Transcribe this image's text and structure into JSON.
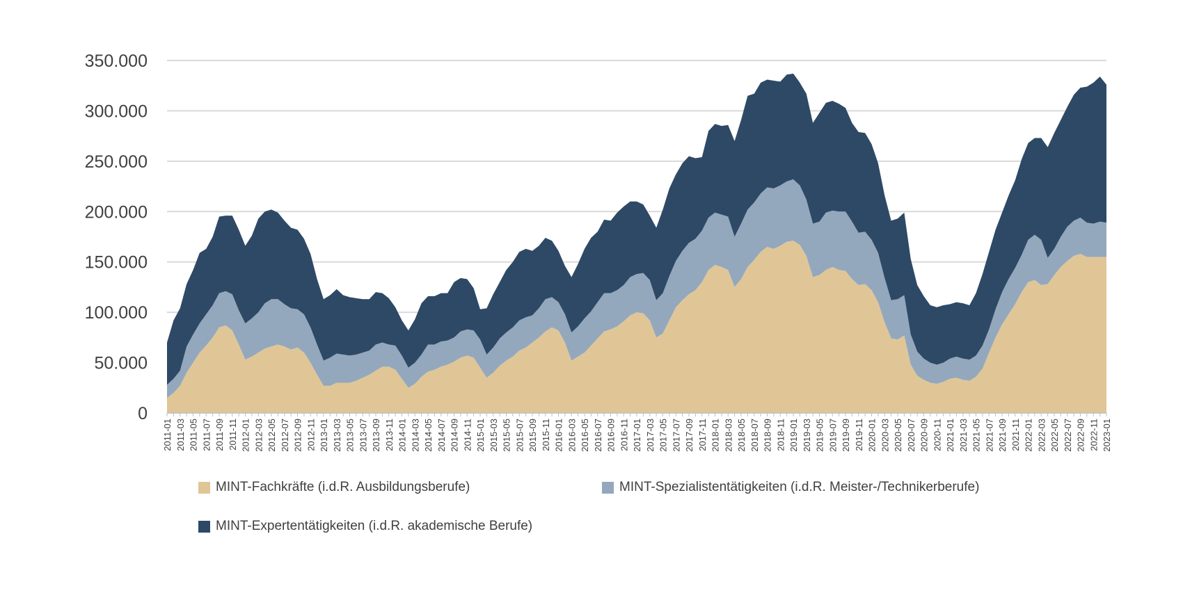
{
  "chart_data": {
    "type": "area",
    "stacked": true,
    "grid": true,
    "legend_position": "bottom",
    "ylim": [
      0,
      350000
    ],
    "y_ticks": [
      0,
      50000,
      100000,
      150000,
      200000,
      250000,
      300000,
      350000
    ],
    "y_tick_labels": [
      "0",
      "50.000",
      "100.000",
      "150.000",
      "200.000",
      "250.000",
      "300.000",
      "350.000"
    ],
    "x_start": "2011-01",
    "x_label_step": 2,
    "series": [
      {
        "name": "MINT-Fachkräfte (i.d.R. Ausbildungsberufe)",
        "color": "#e0c697",
        "values": [
          15000,
          20000,
          27000,
          40000,
          50000,
          60000,
          67000,
          75000,
          85000,
          87000,
          82000,
          68000,
          53000,
          56000,
          60000,
          64000,
          66000,
          68000,
          66000,
          63000,
          65000,
          60000,
          50000,
          38000,
          27000,
          27000,
          30000,
          30000,
          30000,
          32000,
          35000,
          38000,
          42000,
          46000,
          46000,
          43000,
          34000,
          25000,
          29000,
          36000,
          41000,
          43000,
          46000,
          48000,
          51000,
          55000,
          57000,
          55000,
          45000,
          35000,
          40000,
          47000,
          52000,
          56000,
          62000,
          65000,
          70000,
          75000,
          81000,
          85000,
          82000,
          70000,
          52000,
          56000,
          60000,
          67000,
          74000,
          81000,
          83000,
          86000,
          91000,
          97000,
          100000,
          99000,
          92000,
          75000,
          79000,
          92000,
          105000,
          112000,
          118000,
          122000,
          130000,
          142000,
          147000,
          145000,
          142000,
          125000,
          133000,
          145000,
          152000,
          160000,
          165000,
          163000,
          166000,
          170000,
          171000,
          167000,
          156000,
          135000,
          137000,
          142000,
          145000,
          142000,
          141000,
          133000,
          127000,
          128000,
          122000,
          110000,
          90000,
          74000,
          73000,
          77000,
          48000,
          37000,
          33000,
          30000,
          29000,
          31000,
          34000,
          35000,
          33000,
          32000,
          36000,
          44000,
          60000,
          75000,
          88000,
          98000,
          108000,
          120000,
          130000,
          132000,
          127000,
          128000,
          137000,
          145000,
          151000,
          156000,
          158000,
          155000,
          155000,
          155000,
          155000
        ]
      },
      {
        "name": "MINT-Spezialistentätigkeiten (i.d.R. Meister-/Technikerberufe)",
        "color": "#94a8bd",
        "values": [
          13000,
          14000,
          15000,
          26000,
          28000,
          29000,
          31000,
          32000,
          34000,
          34000,
          36000,
          34000,
          36000,
          38000,
          40000,
          45000,
          47000,
          45000,
          42000,
          41000,
          38000,
          38000,
          35000,
          30000,
          25000,
          28000,
          29000,
          28000,
          27000,
          26000,
          25000,
          24000,
          26000,
          24000,
          22000,
          24000,
          23000,
          20000,
          21000,
          22000,
          27000,
          25000,
          25000,
          24000,
          24000,
          26000,
          26000,
          27000,
          28000,
          23000,
          25000,
          27000,
          28000,
          29000,
          30000,
          30000,
          27000,
          29000,
          32000,
          30000,
          28000,
          28000,
          28000,
          30000,
          34000,
          34000,
          36000,
          38000,
          36000,
          36000,
          36000,
          38000,
          38000,
          40000,
          40000,
          37000,
          40000,
          44000,
          46000,
          49000,
          51000,
          51000,
          51000,
          52000,
          52000,
          52000,
          53000,
          50000,
          55000,
          57000,
          57000,
          58000,
          59000,
          60000,
          60000,
          60000,
          61000,
          59000,
          56000,
          53000,
          53000,
          57000,
          56000,
          58000,
          59000,
          57000,
          52000,
          52000,
          50000,
          49000,
          44000,
          38000,
          40000,
          40000,
          30000,
          24000,
          21000,
          20000,
          19000,
          19000,
          20000,
          21000,
          21000,
          21000,
          21000,
          23000,
          23000,
          28000,
          32000,
          35000,
          36000,
          37000,
          42000,
          45000,
          45000,
          26000,
          26000,
          30000,
          34000,
          35000,
          36000,
          34000,
          33000,
          35000,
          34000
        ]
      },
      {
        "name": "MINT-Expertentätigkeiten (i.d.R. akademische Berufe)",
        "color": "#2e4966",
        "values": [
          42000,
          58000,
          62000,
          62000,
          64000,
          70000,
          65000,
          68000,
          76000,
          75000,
          78000,
          80000,
          77000,
          82000,
          93000,
          91000,
          89000,
          86000,
          83000,
          80000,
          79000,
          75000,
          73000,
          65000,
          61000,
          62000,
          64000,
          59000,
          58000,
          56000,
          53000,
          51000,
          52000,
          49000,
          46000,
          38000,
          35000,
          37000,
          43000,
          51000,
          48000,
          48000,
          48000,
          47000,
          55000,
          53000,
          50000,
          42000,
          30000,
          46000,
          53000,
          56000,
          62000,
          65000,
          68000,
          68000,
          64000,
          62000,
          61000,
          56000,
          51000,
          48000,
          55000,
          62000,
          69000,
          73000,
          70000,
          73000,
          72000,
          77000,
          78000,
          75000,
          72000,
          68000,
          64000,
          72000,
          83000,
          87000,
          86000,
          87000,
          86000,
          80000,
          73000,
          86000,
          88000,
          88000,
          91000,
          95000,
          103000,
          113000,
          108000,
          110000,
          107000,
          107000,
          103000,
          106000,
          105000,
          102000,
          105000,
          100000,
          108000,
          109000,
          109000,
          107000,
          103000,
          98000,
          100000,
          98000,
          95000,
          89000,
          82000,
          79000,
          80000,
          82000,
          75000,
          66000,
          62000,
          57000,
          57000,
          57000,
          54000,
          54000,
          55000,
          54000,
          62000,
          71000,
          77000,
          79000,
          79000,
          83000,
          87000,
          95000,
          96000,
          96000,
          101000,
          110000,
          115000,
          116000,
          119000,
          125000,
          129000,
          135000,
          140000,
          144000,
          137000
        ]
      }
    ]
  }
}
